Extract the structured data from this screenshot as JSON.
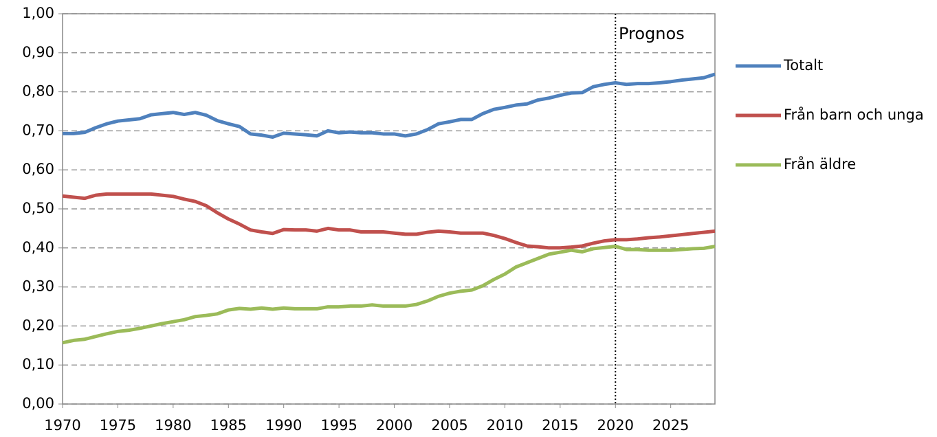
{
  "chart_data": {
    "type": "line",
    "x": [
      1970,
      1971,
      1972,
      1973,
      1974,
      1975,
      1976,
      1977,
      1978,
      1979,
      1980,
      1981,
      1982,
      1983,
      1984,
      1985,
      1986,
      1987,
      1988,
      1989,
      1990,
      1991,
      1992,
      1993,
      1994,
      1995,
      1996,
      1997,
      1998,
      1999,
      2000,
      2001,
      2002,
      2003,
      2004,
      2005,
      2006,
      2007,
      2008,
      2009,
      2010,
      2011,
      2012,
      2013,
      2014,
      2015,
      2016,
      2017,
      2018,
      2019,
      2020,
      2021,
      2022,
      2023,
      2024,
      2025,
      2026,
      2027,
      2028,
      2029
    ],
    "series": [
      {
        "name": "Totalt",
        "color": "#4f81bd",
        "values": [
          0.693,
          0.693,
          0.696,
          0.708,
          0.718,
          0.725,
          0.728,
          0.731,
          0.741,
          0.744,
          0.747,
          0.742,
          0.747,
          0.74,
          0.726,
          0.718,
          0.711,
          0.692,
          0.689,
          0.684,
          0.694,
          0.692,
          0.69,
          0.687,
          0.7,
          0.695,
          0.697,
          0.695,
          0.695,
          0.692,
          0.692,
          0.687,
          0.692,
          0.703,
          0.718,
          0.723,
          0.729,
          0.729,
          0.744,
          0.755,
          0.76,
          0.766,
          0.769,
          0.779,
          0.784,
          0.791,
          0.797,
          0.798,
          0.813,
          0.819,
          0.823,
          0.819,
          0.821,
          0.821,
          0.823,
          0.826,
          0.83,
          0.833,
          0.836,
          0.845
        ]
      },
      {
        "name": "Från barn och unga",
        "color": "#c0504d",
        "values": [
          0.533,
          0.53,
          0.527,
          0.535,
          0.538,
          0.538,
          0.538,
          0.538,
          0.538,
          0.535,
          0.532,
          0.525,
          0.519,
          0.508,
          0.49,
          0.474,
          0.461,
          0.446,
          0.441,
          0.437,
          0.447,
          0.446,
          0.446,
          0.443,
          0.45,
          0.446,
          0.446,
          0.441,
          0.441,
          0.441,
          0.438,
          0.435,
          0.435,
          0.44,
          0.443,
          0.441,
          0.438,
          0.438,
          0.438,
          0.432,
          0.424,
          0.414,
          0.405,
          0.403,
          0.4,
          0.4,
          0.402,
          0.405,
          0.412,
          0.418,
          0.421,
          0.421,
          0.423,
          0.426,
          0.428,
          0.431,
          0.434,
          0.437,
          0.44,
          0.443
        ]
      },
      {
        "name": "Från äldre",
        "color": "#9bbb59",
        "values": [
          0.157,
          0.163,
          0.166,
          0.173,
          0.18,
          0.186,
          0.189,
          0.194,
          0.2,
          0.206,
          0.211,
          0.216,
          0.224,
          0.227,
          0.231,
          0.241,
          0.245,
          0.243,
          0.246,
          0.243,
          0.246,
          0.244,
          0.244,
          0.244,
          0.249,
          0.249,
          0.251,
          0.251,
          0.254,
          0.251,
          0.251,
          0.251,
          0.255,
          0.264,
          0.276,
          0.284,
          0.289,
          0.292,
          0.303,
          0.319,
          0.333,
          0.351,
          0.362,
          0.373,
          0.384,
          0.389,
          0.394,
          0.39,
          0.398,
          0.401,
          0.404,
          0.396,
          0.396,
          0.394,
          0.394,
          0.394,
          0.396,
          0.398,
          0.399,
          0.404
        ]
      }
    ],
    "xlim": [
      1970,
      2029
    ],
    "xticks": [
      1970,
      1975,
      1980,
      1985,
      1990,
      1995,
      2000,
      2005,
      2010,
      2015,
      2020,
      2025
    ],
    "ylim": [
      0,
      1
    ],
    "yticks": [
      {
        "value": 0,
        "label": "0,00"
      },
      {
        "value": 0.1,
        "label": "0,10"
      },
      {
        "value": 0.2,
        "label": "0,20"
      },
      {
        "value": 0.3,
        "label": "0,30"
      },
      {
        "value": 0.4,
        "label": "0,40"
      },
      {
        "value": 0.5,
        "label": "0,50"
      },
      {
        "value": 0.6,
        "label": "0,60"
      },
      {
        "value": 0.7,
        "label": "0,70"
      },
      {
        "value": 0.8,
        "label": "0,80"
      },
      {
        "value": 0.9,
        "label": "0,90"
      },
      {
        "value": 1,
        "label": "1,00"
      }
    ],
    "grid": true,
    "forecast": {
      "x": 2020,
      "label": "Prognos"
    }
  }
}
